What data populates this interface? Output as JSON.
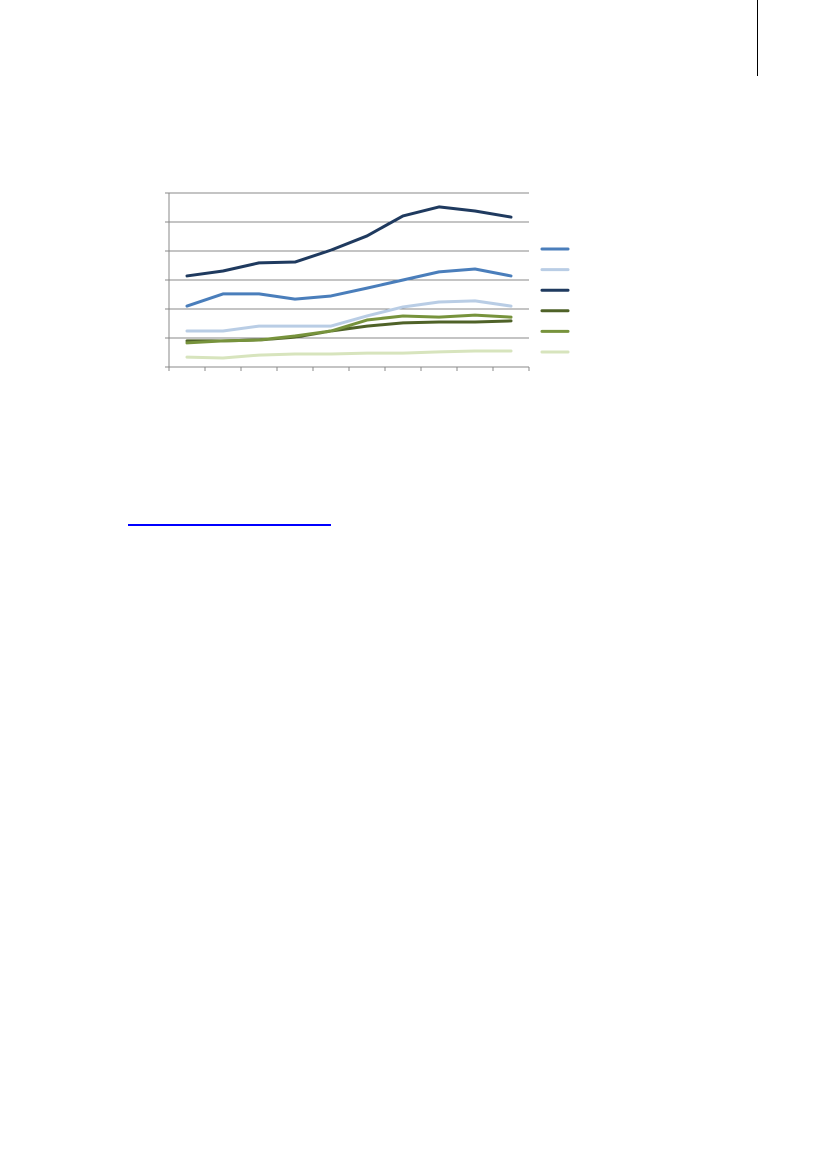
{
  "chart_data": {
    "type": "line",
    "x": [
      1,
      2,
      3,
      4,
      5,
      6,
      7,
      8,
      9,
      10
    ],
    "ylim": [
      0,
      6
    ],
    "grid": true,
    "legend_position": "right",
    "series": [
      {
        "color": "#4a7ebb",
        "values": [
          2.1,
          2.52,
          2.52,
          2.34,
          2.45,
          2.72,
          3.0,
          3.28,
          3.38,
          3.14
        ]
      },
      {
        "color": "#b9cde5",
        "values": [
          1.24,
          1.24,
          1.41,
          1.41,
          1.41,
          1.76,
          2.07,
          2.24,
          2.28,
          2.1
        ]
      },
      {
        "color": "#1f3a5f",
        "values": [
          3.14,
          3.31,
          3.59,
          3.62,
          4.03,
          4.52,
          5.21,
          5.52,
          5.38,
          5.17
        ]
      },
      {
        "color": "#4f6228",
        "values": [
          0.9,
          0.9,
          0.93,
          1.03,
          1.24,
          1.41,
          1.52,
          1.55,
          1.55,
          1.59
        ]
      },
      {
        "color": "#77933c",
        "values": [
          0.83,
          0.9,
          0.93,
          1.07,
          1.24,
          1.62,
          1.76,
          1.72,
          1.79,
          1.72
        ]
      },
      {
        "color": "#d7e4bd",
        "values": [
          0.34,
          0.31,
          0.41,
          0.45,
          0.45,
          0.48,
          0.48,
          0.52,
          0.55,
          0.55
        ]
      }
    ]
  },
  "link": {
    "color": "#0000ff"
  }
}
